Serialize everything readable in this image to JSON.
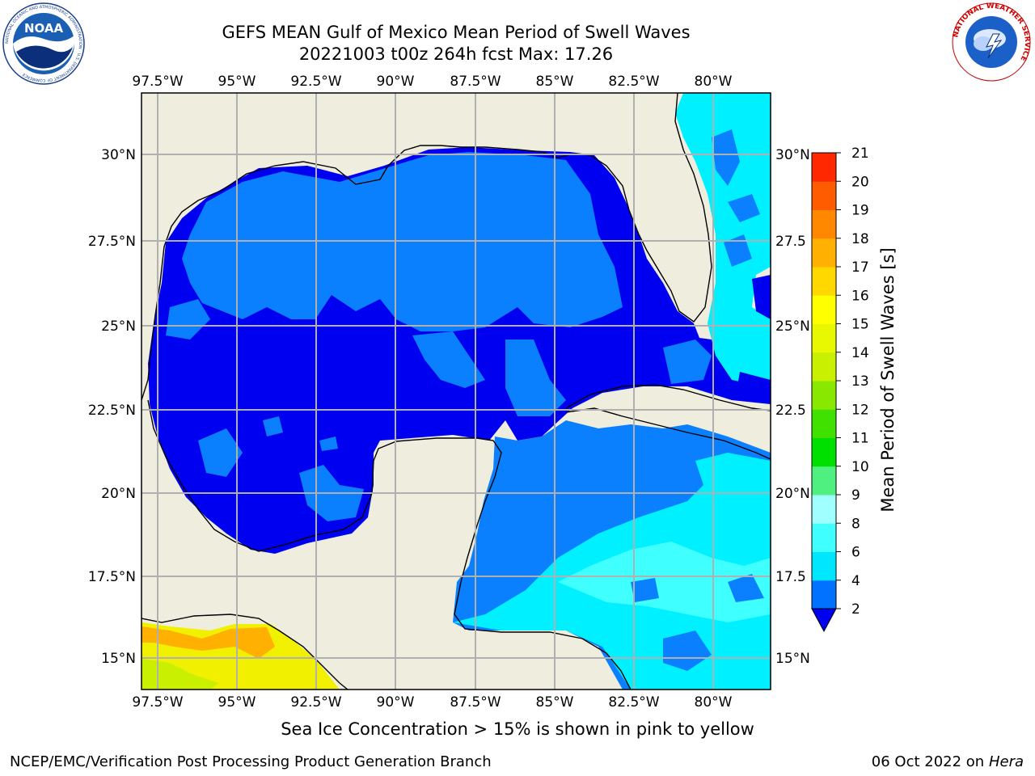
{
  "header": {
    "title_line1": "GEFS MEAN Gulf of Mexico Mean Period of Swell Waves",
    "title_line2": "20221003 t00z 264h fcst   Max: 17.26"
  },
  "logos": {
    "noaa": "NOAA",
    "noaa_ring_text": "NATIONAL OCEANIC AND ATMOSPHERIC ADMINISTRATION · U.S. DEPARTMENT OF COMMERCE",
    "nws_ring_text": "NATIONAL WEATHER SERVICE"
  },
  "map": {
    "lon_labels": [
      "97.5°W",
      "95°W",
      "92.5°W",
      "90°W",
      "87.5°W",
      "85°W",
      "82.5°W",
      "80°W"
    ],
    "lat_labels_left": [
      "30°N",
      "27.5°N",
      "25°N",
      "22.5°N",
      "20°N",
      "17.5°N",
      "15°N"
    ],
    "lat_labels_right": [
      "30°N",
      "27.5",
      "25°N",
      "22.5",
      "20°N",
      "17.5",
      "15°N"
    ]
  },
  "colorbar": {
    "label": "Mean Period of Swell Waves [s]",
    "ticks": [
      "2",
      "4",
      "6",
      "8",
      "9",
      "10",
      "11",
      "12",
      "13",
      "14",
      "15",
      "16",
      "17",
      "18",
      "19",
      "20",
      "21"
    ],
    "colors": [
      "#0072ff",
      "#00e6ff",
      "#40ffff",
      "#a0ffff",
      "#50f080",
      "#00e000",
      "#40e000",
      "#88e800",
      "#c8f000",
      "#e8f800",
      "#ffff00",
      "#ffd800",
      "#ffb000",
      "#ff8800",
      "#ff5c00",
      "#ff2800",
      "#ff0000"
    ],
    "under_color": "#0000f0"
  },
  "colors": {
    "land": "#efedde",
    "deep_blue": "#0000f0",
    "mid_blue": "#0a80ff",
    "cyan": "#00f0ff",
    "grid": "#b0b0b0"
  },
  "footer": {
    "note": "Sea Ice Concentration > 15% is shown in pink to yellow",
    "left": "NCEP/EMC/Verification Post Processing Product Generation Branch",
    "right_date": "06 Oct 2022 on",
    "right_host": "Hera"
  }
}
